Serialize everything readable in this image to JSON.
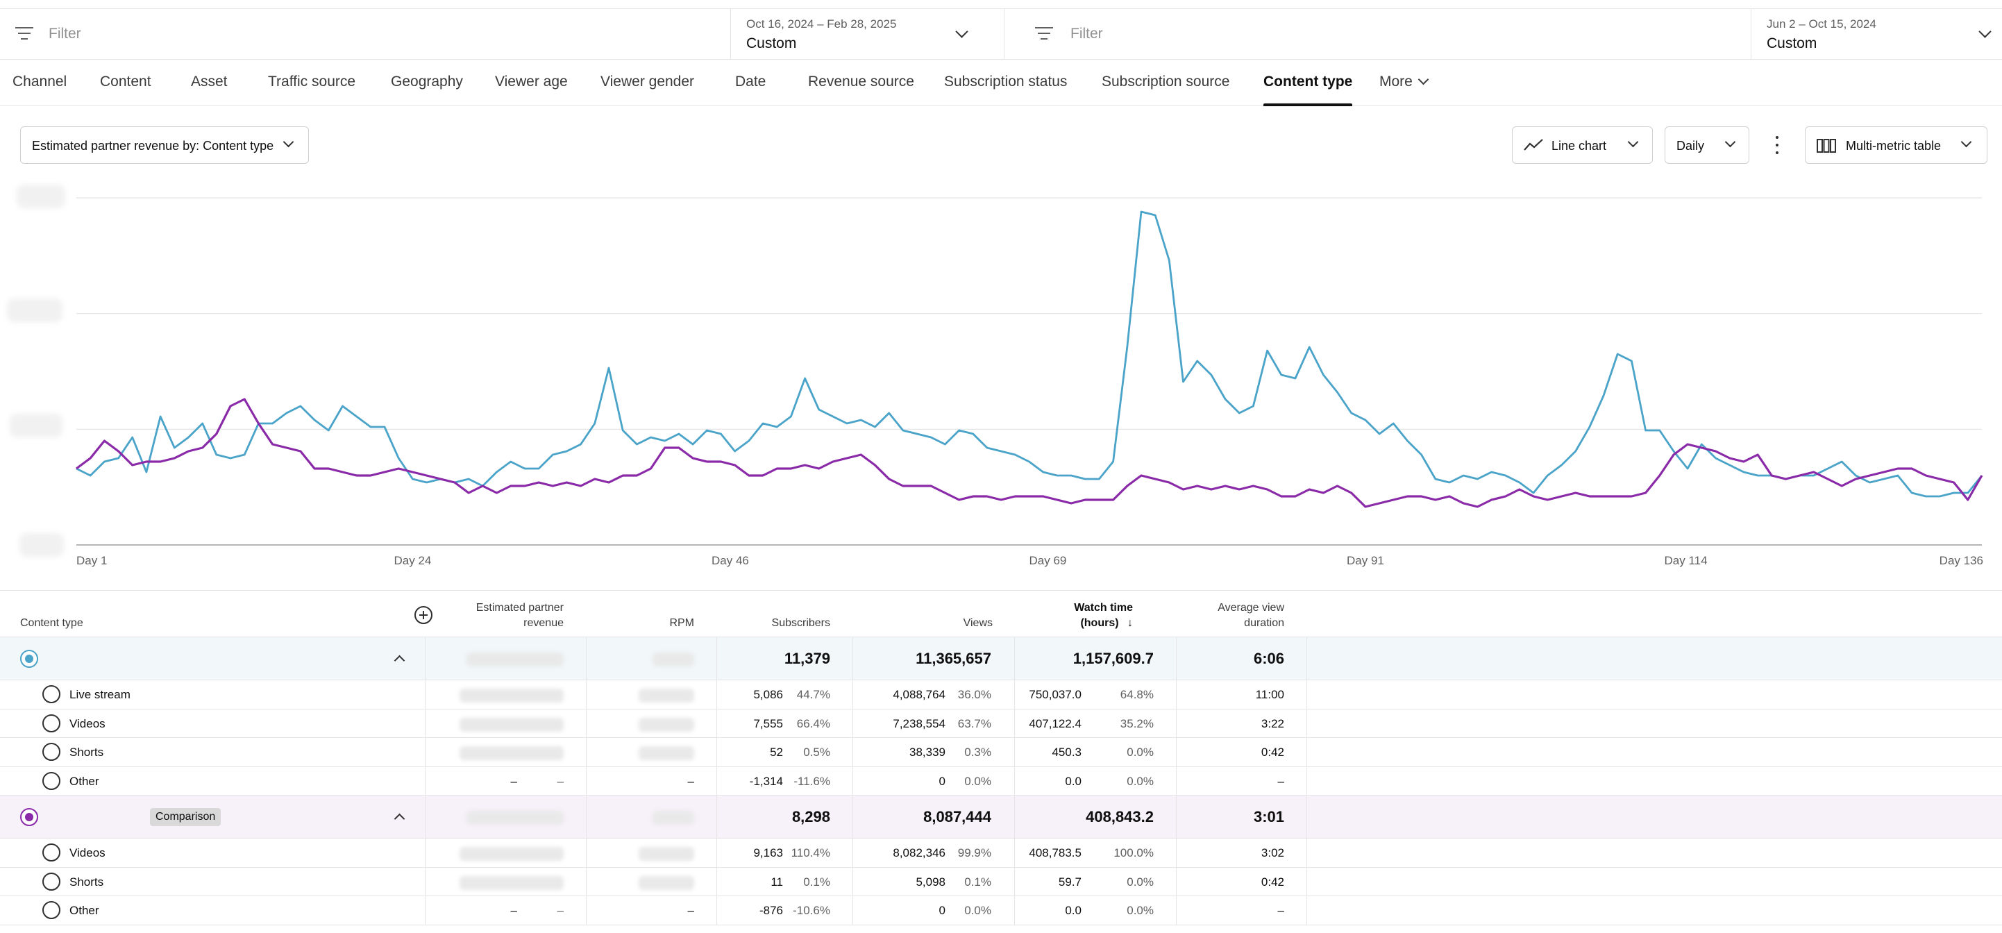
{
  "filters": {
    "left": {
      "placeholder": "Filter",
      "date_range": "Oct 16, 2024 – Feb 28, 2025",
      "date_preset": "Custom"
    },
    "right": {
      "placeholder": "Filter",
      "date_range": "Jun 2 – Oct 15, 2024",
      "date_preset": "Custom"
    }
  },
  "tabs": [
    {
      "label": "Channel"
    },
    {
      "label": "Content"
    },
    {
      "label": "Asset"
    },
    {
      "label": "Traffic source"
    },
    {
      "label": "Geography"
    },
    {
      "label": "Viewer age"
    },
    {
      "label": "Viewer gender"
    },
    {
      "label": "Date"
    },
    {
      "label": "Revenue source"
    },
    {
      "label": "Subscription status"
    },
    {
      "label": "Subscription source"
    },
    {
      "label": "Content type",
      "active": true
    },
    {
      "label": "More"
    }
  ],
  "controls": {
    "metric_select": "Estimated partner revenue by: Content type",
    "chart_type": "Line chart",
    "granularity": "Daily",
    "table_type": "Multi-metric table"
  },
  "colors": {
    "primary_series": "#4aa3c8",
    "comparison_series": "#8a2aa8",
    "accent": "#0f0f0f"
  },
  "chart_data": {
    "type": "line",
    "x_labels": [
      "Day 1",
      "Day 24",
      "Day 46",
      "Day 69",
      "Day 91",
      "Day 114",
      "Day 136"
    ],
    "x_range": [
      1,
      136
    ],
    "y_range": [
      0,
      100
    ],
    "y_axis_labels": "hidden",
    "grid": true,
    "series": [
      {
        "color": "#4aa3c8",
        "values": [
          22,
          20,
          24,
          25,
          31,
          21,
          37,
          28,
          31,
          35,
          26,
          25,
          26,
          35,
          35,
          38,
          40,
          36,
          33,
          40,
          37,
          34,
          34,
          25,
          19,
          18,
          19,
          18,
          19,
          17,
          21,
          24,
          22,
          22,
          26,
          27,
          29,
          35,
          51,
          33,
          29,
          31,
          30,
          32,
          29,
          33,
          32,
          27,
          30,
          35,
          34,
          37,
          48,
          39,
          37,
          35,
          36,
          34,
          38,
          33,
          32,
          31,
          29,
          33,
          32,
          28,
          27,
          26,
          24,
          21,
          20,
          20,
          19,
          19,
          24,
          57,
          96,
          95,
          82,
          47,
          53,
          49,
          42,
          38,
          40,
          56,
          49,
          48,
          57,
          49,
          44,
          38,
          36,
          32,
          35,
          30,
          26,
          19,
          18,
          20,
          19,
          21,
          20,
          18,
          15,
          20,
          23,
          27,
          34,
          43,
          55,
          53,
          33,
          33,
          27,
          22,
          29,
          25,
          23,
          21,
          20,
          20,
          19,
          20,
          20,
          22,
          24,
          20,
          18,
          19,
          20,
          15,
          14,
          14,
          15,
          15,
          20
        ]
      },
      {
        "color": "#8a2aa8",
        "values": [
          22,
          25,
          30,
          27,
          23,
          24,
          24,
          25,
          27,
          28,
          32,
          40,
          42,
          35,
          29,
          28,
          27,
          22,
          22,
          21,
          20,
          20,
          21,
          22,
          21,
          20,
          19,
          18,
          15,
          17,
          15,
          17,
          17,
          18,
          17,
          18,
          17,
          19,
          18,
          20,
          20,
          22,
          28,
          28,
          25,
          24,
          24,
          23,
          20,
          20,
          22,
          22,
          23,
          22,
          24,
          25,
          26,
          23,
          19,
          17,
          17,
          17,
          15,
          13,
          14,
          14,
          13,
          14,
          14,
          14,
          13,
          12,
          13,
          13,
          13,
          17,
          20,
          19,
          18,
          16,
          17,
          16,
          17,
          16,
          17,
          16,
          14,
          14,
          16,
          15,
          17,
          15,
          11,
          12,
          13,
          14,
          14,
          13,
          14,
          12,
          11,
          13,
          14,
          16,
          14,
          13,
          14,
          15,
          14,
          14,
          14,
          14,
          15,
          20,
          26,
          29,
          28,
          27,
          25,
          24,
          26,
          20,
          19,
          20,
          21,
          19,
          17,
          19,
          20,
          21,
          22,
          22,
          20,
          19,
          18,
          13,
          20
        ]
      }
    ]
  },
  "table": {
    "headers": {
      "content_type": "Content type",
      "revenue_1": "Estimated partner",
      "revenue_2": "revenue",
      "rpm": "RPM",
      "subscribers": "Subscribers",
      "views": "Views",
      "watch_1": "Watch time",
      "watch_2": "(hours)",
      "avd_1": "Average view",
      "avd_2": "duration"
    },
    "groups": [
      {
        "label": "",
        "totals": {
          "subscribers": "11,379",
          "views": "11,365,657",
          "watch_time": "1,157,609.7",
          "avd": "6:06"
        },
        "rows": [
          {
            "name": "Live stream",
            "subscribers": "5,086",
            "subscribers_pct": "44.7%",
            "views": "4,088,764",
            "views_pct": "36.0%",
            "watch_time": "750,037.0",
            "watch_pct": "64.8%",
            "avd": "11:00"
          },
          {
            "name": "Videos",
            "subscribers": "7,555",
            "subscribers_pct": "66.4%",
            "views": "7,238,554",
            "views_pct": "63.7%",
            "watch_time": "407,122.4",
            "watch_pct": "35.2%",
            "avd": "3:22"
          },
          {
            "name": "Shorts",
            "subscribers": "52",
            "subscribers_pct": "0.5%",
            "views": "38,339",
            "views_pct": "0.3%",
            "watch_time": "450.3",
            "watch_pct": "0.0%",
            "avd": "0:42"
          },
          {
            "name": "Other",
            "revenue": "–",
            "revenue_pct": "–",
            "rpm": "–",
            "subscribers": "-1,314",
            "subscribers_pct": "-11.6%",
            "views": "0",
            "views_pct": "0.0%",
            "watch_time": "0.0",
            "watch_pct": "0.0%",
            "avd": "–"
          }
        ]
      },
      {
        "label": "Comparison",
        "totals": {
          "subscribers": "8,298",
          "views": "8,087,444",
          "watch_time": "408,843.2",
          "avd": "3:01"
        },
        "rows": [
          {
            "name": "Videos",
            "subscribers": "9,163",
            "subscribers_pct": "110.4%",
            "views": "8,082,346",
            "views_pct": "99.9%",
            "watch_time": "408,783.5",
            "watch_pct": "100.0%",
            "avd": "3:02"
          },
          {
            "name": "Shorts",
            "subscribers": "11",
            "subscribers_pct": "0.1%",
            "views": "5,098",
            "views_pct": "0.1%",
            "watch_time": "59.7",
            "watch_pct": "0.0%",
            "avd": "0:42"
          },
          {
            "name": "Other",
            "revenue": "–",
            "revenue_pct": "–",
            "rpm": "–",
            "subscribers": "-876",
            "subscribers_pct": "-10.6%",
            "views": "0",
            "views_pct": "0.0%",
            "watch_time": "0.0",
            "watch_pct": "0.0%",
            "avd": "–"
          }
        ]
      }
    ]
  }
}
